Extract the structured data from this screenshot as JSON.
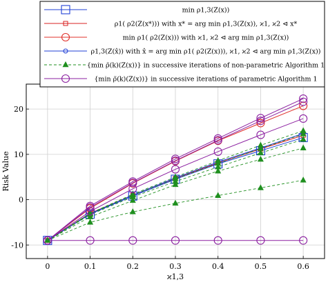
{
  "chart_data": {
    "type": "line",
    "xlabel": "ϰ1,3",
    "ylabel": "Risk Value",
    "x": [
      0,
      0.1,
      0.2,
      0.3,
      0.4,
      0.5,
      0.6
    ],
    "x_ticks": [
      "0",
      "0.1",
      "0.2",
      "0.3",
      "0.4",
      "0.5",
      "0.6"
    ],
    "y_ticks": [
      -10,
      0,
      10,
      20
    ],
    "xlim": [
      -0.05,
      0.65
    ],
    "ylim": [
      -13,
      25.5
    ],
    "grid": true,
    "legend_position": "top",
    "legend": [
      {
        "text": "min ρ1,3(Z(x))",
        "color": "#1f3fd6",
        "marker": "square-big",
        "dash": "solid"
      },
      {
        "text": "ρ1( ρ2(Z(x*))) with x* = arg min ρ1,3(Z(x)), ϰ1, ϰ2 ⊲ x*",
        "color": "#d82020",
        "marker": "square-small",
        "dash": "solid"
      },
      {
        "text": "min ρ1( ρ2(Z(x))) with ϰ1, ϰ2 ⊲ arg min ρ1,3(Z(x))",
        "color": "#e0302a",
        "marker": "circle-big",
        "dash": "solid"
      },
      {
        "text": "ρ1,3(Z(x̂)) with x̂ = arg min ρ1( ρ2(Z(x))), ϰ1, ϰ2 ⊲ arg min ρ1,3(Z(x))",
        "color": "#1f3fd6",
        "marker": "circle-small",
        "dash": "solid"
      },
      {
        "text": "{min ρ̃(k)(Z(x))} in successive iterations of non-parametric Algorithm 1",
        "color": "#1f8f1f",
        "marker": "triangle",
        "dash": "dashed"
      },
      {
        "text": "{min ρ̃(k)(Z(x))} in successive iterations of parametric Algorithm 1",
        "color": "#8b1fa0",
        "marker": "circle-big",
        "dash": "solid"
      }
    ],
    "series": [
      {
        "color": "#1f3fd6",
        "marker": "square-big",
        "dash": "solid",
        "values": [
          -9,
          -3.2,
          0.8,
          4.5,
          7.9,
          10.8,
          13.7
        ]
      },
      {
        "color": "#d82020",
        "marker": "square-small",
        "dash": "solid",
        "values": [
          -9,
          -3.0,
          1.0,
          4.7,
          8.1,
          11.2,
          14.2
        ]
      },
      {
        "color": "#e0302a",
        "marker": "circle-big",
        "dash": "solid",
        "values": [
          -9,
          -1.9,
          3.6,
          8.5,
          13.0,
          16.9,
          20.7
        ]
      },
      {
        "color": "#1f3fd6",
        "marker": "circle-small",
        "dash": "solid",
        "values": [
          -9,
          -3.1,
          1.0,
          4.8,
          8.3,
          11.4,
          14.6
        ]
      },
      {
        "color": "#1f8f1f",
        "marker": "triangle",
        "dash": "dashed",
        "values": [
          -9,
          -5.0,
          -2.7,
          -0.8,
          0.9,
          2.6,
          4.3
        ]
      },
      {
        "color": "#1f8f1f",
        "marker": "triangle",
        "dash": "dashed",
        "values": [
          -9,
          -3.8,
          -0.2,
          3.3,
          6.3,
          8.9,
          11.4
        ]
      },
      {
        "color": "#1f8f1f",
        "marker": "triangle",
        "dash": "dashed",
        "values": [
          -9,
          -3.3,
          0.6,
          4.0,
          7.2,
          10.3,
          13.3
        ]
      },
      {
        "color": "#1f8f1f",
        "marker": "triangle",
        "dash": "dashed",
        "values": [
          -9,
          -3.1,
          1.0,
          4.6,
          8.0,
          11.3,
          14.5
        ]
      },
      {
        "color": "#1f8f1f",
        "marker": "triangle",
        "dash": "dashed",
        "values": [
          -9,
          -3.0,
          1.2,
          5.0,
          8.6,
          12.0,
          15.2
        ]
      },
      {
        "color": "#8b1fa0",
        "marker": "circle-big",
        "dash": "solid",
        "values": [
          -9,
          -9,
          -9,
          -9,
          -9,
          -9,
          -9
        ]
      },
      {
        "color": "#8b1fa0",
        "marker": "circle-big",
        "dash": "solid",
        "values": [
          -9,
          -2.6,
          2.4,
          6.7,
          10.6,
          14.3,
          17.9
        ]
      },
      {
        "color": "#8b1fa0",
        "marker": "circle-big",
        "dash": "solid",
        "values": [
          -9,
          -1.7,
          3.7,
          8.6,
          13.1,
          17.4,
          21.6
        ]
      },
      {
        "color": "#8b1fa0",
        "marker": "circle-big",
        "dash": "solid",
        "values": [
          -9,
          -1.4,
          4.0,
          9.0,
          13.5,
          18.0,
          22.3
        ]
      }
    ]
  }
}
